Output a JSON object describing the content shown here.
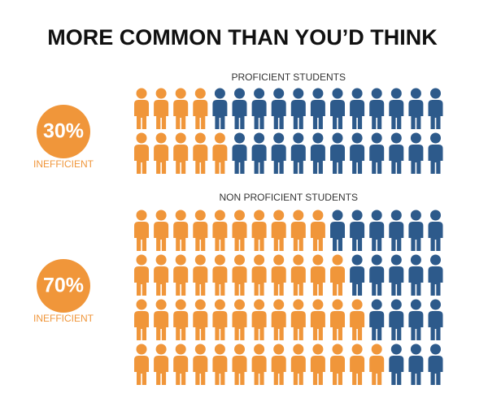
{
  "title": "MORE COMMON THAN YOU’D THINK",
  "chart_data": [
    {
      "type": "pictogram",
      "title": "PROFICIENT STUDENTS",
      "value": 30,
      "value_label": "30%",
      "label": "INEFFICIENT",
      "columns": 16,
      "rows": [
        4,
        5
      ],
      "colors": [
        "#f0963a",
        "#2d5a8b"
      ]
    },
    {
      "type": "pictogram",
      "title": "NON PROFICIENT STUDENTS",
      "value": 70,
      "value_label": "70%",
      "label": "INEFFICIENT",
      "columns": 16,
      "rows": [
        10,
        11,
        12,
        13
      ],
      "colors": [
        "#f0963a",
        "#2d5a8b"
      ]
    }
  ]
}
